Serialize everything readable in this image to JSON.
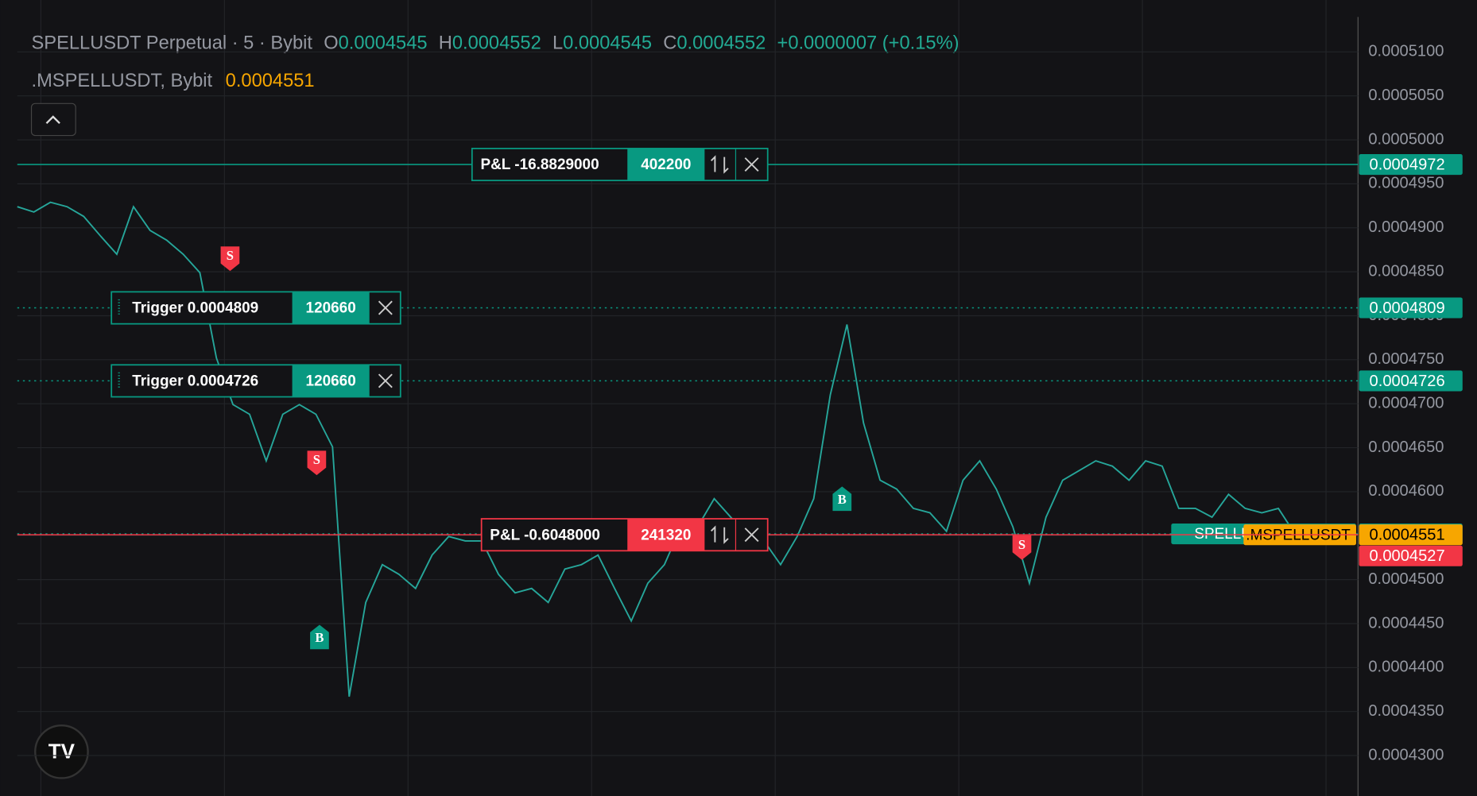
{
  "chart_data": {
    "type": "line",
    "symbol": "SPELLUSDT Perpetual · 5 · Bybit",
    "ohlc": [
      {
        "key": "O",
        "value": "0.0004545"
      },
      {
        "key": "H",
        "value": "0.0004552"
      },
      {
        "key": "L",
        "value": "0.0004545"
      },
      {
        "key": "C",
        "value": "0.0004552"
      }
    ],
    "change": "+0.0000007 (+0.15%)",
    "index_name": ".MSPELLUSDT, Bybit",
    "index_value": "0.0004551",
    "series": [
      {
        "name": "SPELLUSDT Perpetual",
        "color": "#26a69a",
        "values": [
          0.0004924,
          0.0004918,
          0.0004929,
          0.0004924,
          0.0004913,
          0.0004891,
          0.000487,
          0.0004924,
          0.0004897,
          0.0004886,
          0.000487,
          0.0004849,
          0.0004752,
          0.0004699,
          0.0004688,
          0.0004635,
          0.0004688,
          0.0004699,
          0.0004688,
          0.0004651,
          0.0004367,
          0.0004474,
          0.0004517,
          0.0004506,
          0.000449,
          0.0004528,
          0.0004549,
          0.0004544,
          0.0004544,
          0.0004506,
          0.0004485,
          0.000449,
          0.0004474,
          0.0004512,
          0.0004517,
          0.0004528,
          0.000449,
          0.0004453,
          0.0004496,
          0.0004517,
          0.000456,
          0.000456,
          0.0004592,
          0.0004571,
          0.0004549,
          0.0004544,
          0.0004517,
          0.0004549,
          0.0004592,
          0.000471,
          0.000479,
          0.0004678,
          0.0004613,
          0.0004603,
          0.0004581,
          0.0004576,
          0.0004555,
          0.0004613,
          0.0004635,
          0.0004603,
          0.000456,
          0.0004496,
          0.0004571,
          0.0004613,
          0.0004624,
          0.0004635,
          0.0004629,
          0.0004613,
          0.0004635,
          0.0004629,
          0.0004581,
          0.0004581,
          0.0004571,
          0.0004597,
          0.0004581,
          0.0004576,
          0.0004581,
          0.0004552
        ]
      }
    ],
    "ylim": [
      0.0004254,
      0.0005159
    ],
    "yticks": [
      {
        "value": 0.00043,
        "label": "0.0004300"
      },
      {
        "value": 0.000435,
        "label": "0.0004350"
      },
      {
        "value": 0.00044,
        "label": "0.0004400"
      },
      {
        "value": 0.000445,
        "label": "0.0004450"
      },
      {
        "value": 0.00045,
        "label": "0.0004500"
      },
      {
        "value": 0.000455,
        "label": "0.0004550"
      },
      {
        "value": 0.00046,
        "label": "0.0004600"
      },
      {
        "value": 0.000465,
        "label": "0.0004650"
      },
      {
        "value": 0.00047,
        "label": "0.0004700"
      },
      {
        "value": 0.000475,
        "label": "0.0004750"
      },
      {
        "value": 0.00048,
        "label": "0.0004800"
      },
      {
        "value": 0.000485,
        "label": "0.0004850"
      },
      {
        "value": 0.00049,
        "label": "0.0004900"
      },
      {
        "value": 0.000495,
        "label": "0.0004950"
      },
      {
        "value": 0.0005,
        "label": "0.0005000"
      },
      {
        "value": 0.000505,
        "label": "0.0005050"
      },
      {
        "value": 0.00051,
        "label": "0.0005100"
      }
    ],
    "grid": true,
    "price_lines": [
      {
        "value": 0.0004972,
        "color": "#089981",
        "style": "solid"
      },
      {
        "value": 0.0004809,
        "color": "#089981",
        "style": "dotted"
      },
      {
        "value": 0.0004726,
        "color": "#089981",
        "style": "dotted"
      },
      {
        "value": 0.0004552,
        "color": "#089981",
        "style": "dotted",
        "tag": "SPELLUSDT Perpetual"
      },
      {
        "value": 0.0004551,
        "color": "#f7a600",
        "line_color": "#f23645",
        "style": "solid",
        "tag": ".MSPELLUSDT"
      },
      {
        "value": 0.0004527,
        "color": "#f23645",
        "style": "none"
      }
    ],
    "orders": [
      {
        "text": "P&L -16.8829000",
        "qty": "402200",
        "color": "#089981",
        "line": 0
      },
      {
        "text": "Trigger 0.0004809",
        "qty": "120660",
        "color": "#089981",
        "line": 1
      },
      {
        "text": "Trigger 0.0004726",
        "qty": "120660",
        "color": "#089981",
        "line": 2
      },
      {
        "text": "P&L -0.6048000",
        "qty": "241320",
        "color": "#f23645",
        "line": 4
      }
    ],
    "markers": [
      {
        "label": "S",
        "color": "#f23645"
      },
      {
        "label": "S",
        "color": "#f23645"
      },
      {
        "label": "B",
        "color": "#089981"
      },
      {
        "label": "B",
        "color": "#089981"
      },
      {
        "label": "S",
        "color": "#f23645"
      }
    ]
  }
}
